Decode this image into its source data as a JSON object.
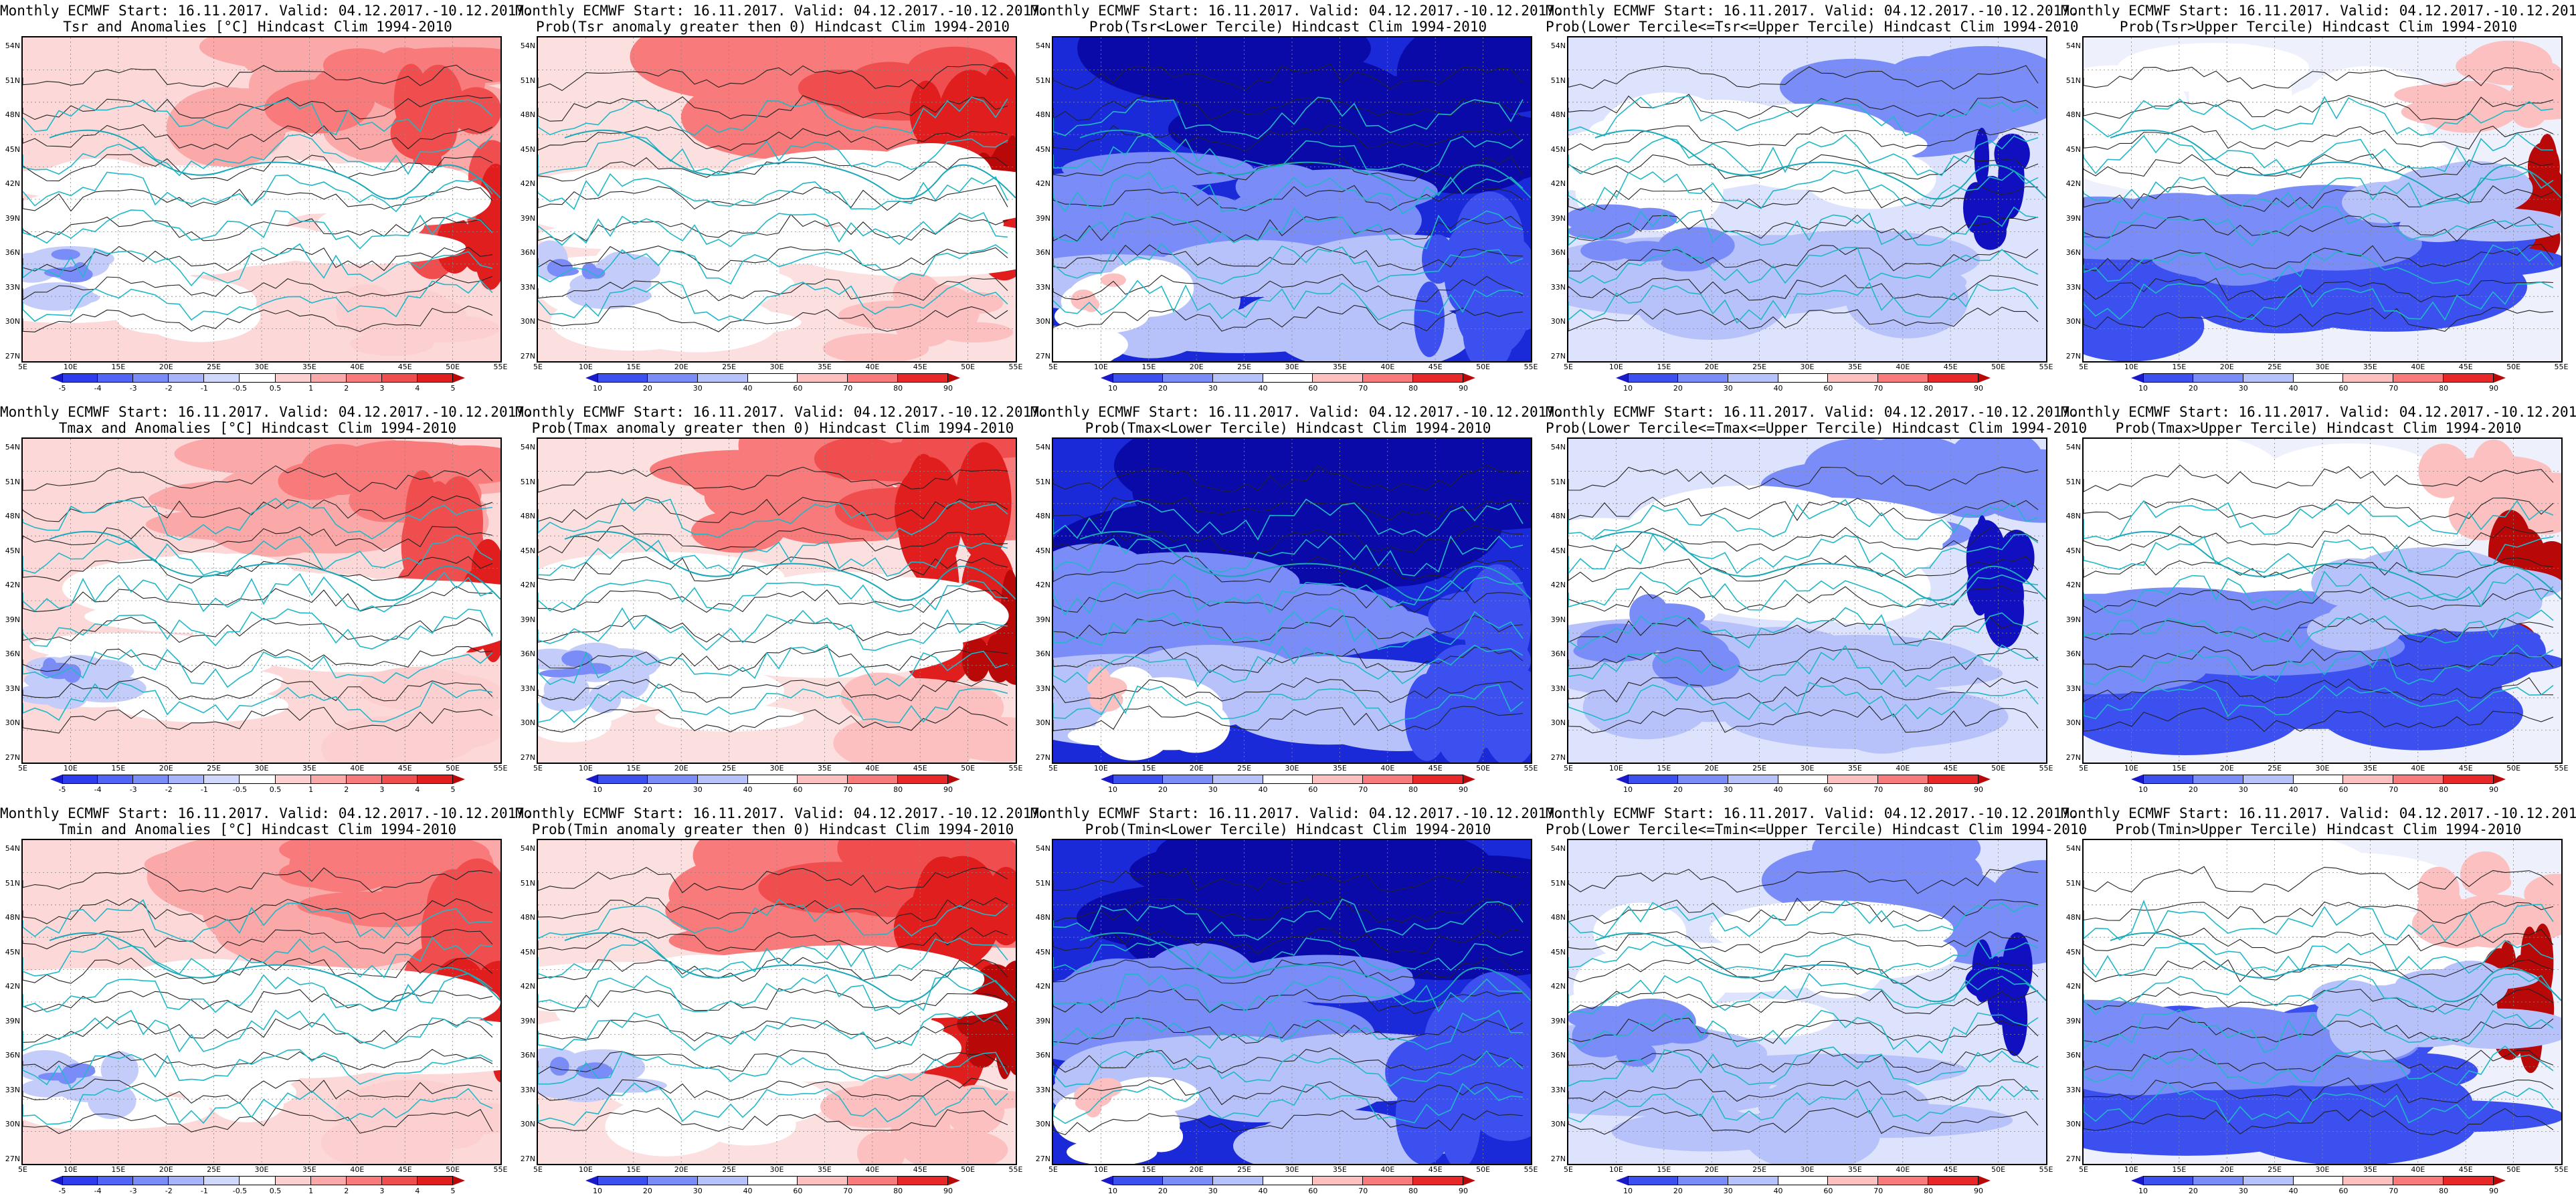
{
  "header_line": "Monthly ECMWF Start: 16.11.2017. Valid: 04.12.2017.-10.12.2017.",
  "lat_labels": [
    "54N",
    "51N",
    "48N",
    "45N",
    "42N",
    "39N",
    "36N",
    "33N",
    "30N",
    "27N"
  ],
  "lon_labels": [
    "5E",
    "10E",
    "15E",
    "20E",
    "25E",
    "30E",
    "35E",
    "40E",
    "45E",
    "50E",
    "55E"
  ],
  "colorbars": {
    "anomaly": {
      "ticks": [
        "-5",
        "-4",
        "-3",
        "-2",
        "-1",
        "-0.5",
        "0.5",
        "1",
        "2",
        "3",
        "4",
        "5"
      ],
      "colors": [
        "#1a1ac8",
        "#2e3cf0",
        "#5064f5",
        "#7a8cf8",
        "#a8b4fa",
        "#d0d8fc",
        "#ffffff",
        "#fcd0d0",
        "#faa8a8",
        "#f87a7a",
        "#f04e4e",
        "#e01e1e",
        "#b80808"
      ]
    },
    "probability": {
      "ticks": [
        "10",
        "20",
        "30",
        "40",
        "60",
        "70",
        "80",
        "90"
      ],
      "colors": [
        "#1a1ac8",
        "#3c50f0",
        "#7a8cf8",
        "#b8c2fa",
        "#ffffff",
        "#fcc0c0",
        "#f87a7a",
        "#e82828",
        "#b80808"
      ]
    }
  },
  "rows": [
    {
      "panels": [
        {
          "title": "Tsr and Anomalies [°C] Hindcast Clim 1994-2010",
          "kind": "anomaly",
          "bar": "anomaly"
        },
        {
          "title": "Prob(Tsr anomaly greater then 0) Hindcast Clim 1994-2010",
          "kind": "warm",
          "bar": "probability"
        },
        {
          "title": "Prob(Tsr<Lower Tercile) Hindcast Clim 1994-2010",
          "kind": "lower",
          "bar": "probability"
        },
        {
          "title": "Prob(Lower Tercile<=Tsr<=Upper Tercile) Hindcast Clim 1994-2010",
          "kind": "middle",
          "bar": "probability"
        },
        {
          "title": "Prob(Tsr>Upper Tercile) Hindcast Clim 1994-2010",
          "kind": "upper",
          "bar": "probability"
        }
      ]
    },
    {
      "panels": [
        {
          "title": "Tmax and Anomalies [°C] Hindcast Clim 1994-2010",
          "kind": "anomaly",
          "bar": "anomaly"
        },
        {
          "title": "Prob(Tmax anomaly greater then 0) Hindcast Clim 1994-2010",
          "kind": "warm",
          "bar": "probability"
        },
        {
          "title": "Prob(Tmax<Lower Tercile) Hindcast Clim 1994-2010",
          "kind": "lower",
          "bar": "probability"
        },
        {
          "title": "Prob(Lower Tercile<=Tmax<=Upper Tercile) Hindcast Clim 1994-2010",
          "kind": "middle",
          "bar": "probability"
        },
        {
          "title": "Prob(Tmax>Upper Tercile) Hindcast Clim 1994-2010",
          "kind": "upper",
          "bar": "probability"
        }
      ]
    },
    {
      "panels": [
        {
          "title": "Tmin and Anomalies [°C] Hindcast Clim 1994-2010",
          "kind": "anomaly",
          "bar": "anomaly"
        },
        {
          "title": "Prob(Tmin anomaly greater then 0) Hindcast Clim 1994-2010",
          "kind": "warm",
          "bar": "probability"
        },
        {
          "title": "Prob(Tmin<Lower Tercile) Hindcast Clim 1994-2010",
          "kind": "lower",
          "bar": "probability"
        },
        {
          "title": "Prob(Lower Tercile<=Tmin<=Upper Tercile) Hindcast Clim 1994-2010",
          "kind": "middle",
          "bar": "probability"
        },
        {
          "title": "Prob(Tmin>Upper Tercile) Hindcast Clim 1994-2010",
          "kind": "upper",
          "bar": "probability"
        }
      ]
    }
  ]
}
